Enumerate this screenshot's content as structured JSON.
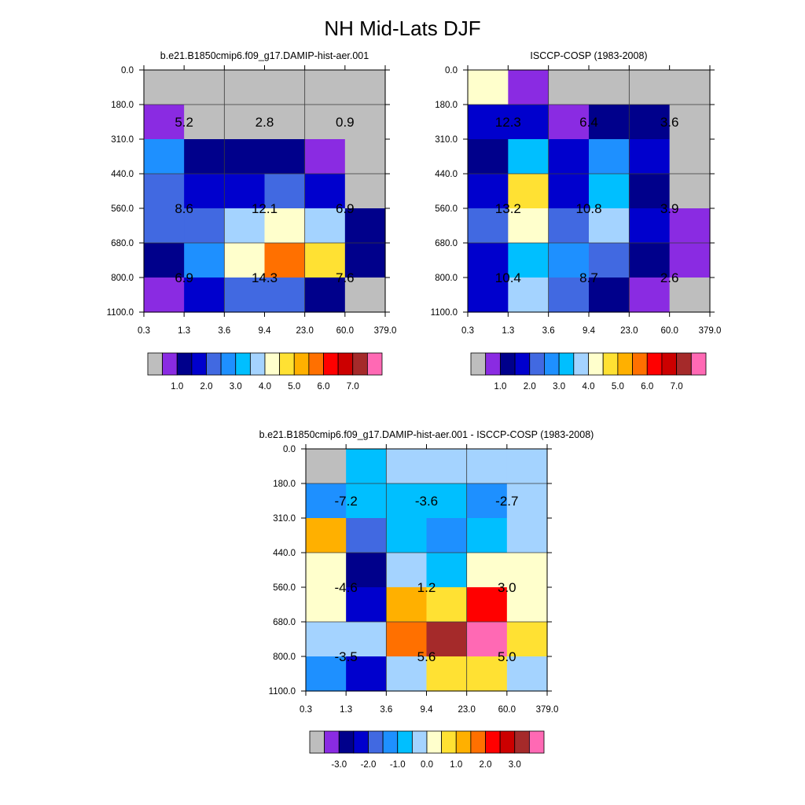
{
  "figure_title": "NH Mid-Lats DJF",
  "chart_data": [
    {
      "type": "heatmap",
      "title": "b.e21.B1850cmip6.f09_g17.DAMIP-hist-aer.001",
      "x_ticks": [
        "0.3",
        "1.3",
        "3.6",
        "9.4",
        "23.0",
        "60.0",
        "379.0"
      ],
      "y_ticks": [
        "0.0",
        "180.0",
        "310.0",
        "440.0",
        "560.0",
        "680.0",
        "800.0",
        "1100.0"
      ],
      "cell_colors": [
        [
          "#bebebe",
          "#bebebe",
          "#bebebe",
          "#bebebe",
          "#bebebe",
          "#bebebe"
        ],
        [
          "#8a2be2",
          "#bebebe",
          "#bebebe",
          "#bebebe",
          "#bebebe",
          "#bebebe"
        ],
        [
          "#1e90ff",
          "#00008b",
          "#00008b",
          "#00008b",
          "#8a2be2",
          "#bebebe"
        ],
        [
          "#4169e1",
          "#0000cd",
          "#0000cd",
          "#4169e1",
          "#0000cd",
          "#bebebe"
        ],
        [
          "#4169e1",
          "#4169e1",
          "#a4d3ff",
          "#ffffcc",
          "#a4d3ff",
          "#00008b"
        ],
        [
          "#00008b",
          "#1e90ff",
          "#ffffcc",
          "#ff7000",
          "#ffe133",
          "#00008b"
        ],
        [
          "#8a2be2",
          "#0000cd",
          "#4169e1",
          "#4169e1",
          "#00008b",
          "#bebebe"
        ]
      ],
      "annotations": [
        {
          "x_index": 1,
          "y_index": 1.5,
          "text": "5.2"
        },
        {
          "x_index": 3,
          "y_index": 1.5,
          "text": "2.8"
        },
        {
          "x_index": 5,
          "y_index": 1.5,
          "text": "0.9"
        },
        {
          "x_index": 1,
          "y_index": 4,
          "text": "8.6"
        },
        {
          "x_index": 3,
          "y_index": 4,
          "text": "12.1"
        },
        {
          "x_index": 5,
          "y_index": 4,
          "text": "6.9"
        },
        {
          "x_index": 1,
          "y_index": 6,
          "text": "6.9"
        },
        {
          "x_index": 3,
          "y_index": 6,
          "text": "14.3"
        },
        {
          "x_index": 5,
          "y_index": 6,
          "text": "7.6"
        }
      ],
      "colorbar": {
        "colors": [
          "#bebebe",
          "#8a2be2",
          "#00008b",
          "#0000cd",
          "#4169e1",
          "#1e90ff",
          "#00bfff",
          "#a4d3ff",
          "#ffffcc",
          "#ffe133",
          "#ffb000",
          "#ff7000",
          "#ff0000",
          "#cc0000",
          "#a52a2a",
          "#ff69b4"
        ],
        "labels": [
          "1.0",
          "2.0",
          "3.0",
          "4.0",
          "5.0",
          "6.0",
          "7.0"
        ]
      }
    },
    {
      "type": "heatmap",
      "title": "ISCCP-COSP (1983-2008)",
      "x_ticks": [
        "0.3",
        "1.3",
        "3.6",
        "9.4",
        "23.0",
        "60.0",
        "379.0"
      ],
      "y_ticks": [
        "0.0",
        "180.0",
        "310.0",
        "440.0",
        "560.0",
        "680.0",
        "800.0",
        "1100.0"
      ],
      "cell_colors": [
        [
          "#ffffcc",
          "#8a2be2",
          "#bebebe",
          "#bebebe",
          "#bebebe",
          "#bebebe"
        ],
        [
          "#0000cd",
          "#0000cd",
          "#8a2be2",
          "#00008b",
          "#00008b",
          "#bebebe"
        ],
        [
          "#00008b",
          "#00bfff",
          "#0000cd",
          "#1e90ff",
          "#0000cd",
          "#bebebe"
        ],
        [
          "#0000cd",
          "#ffe133",
          "#0000cd",
          "#00bfff",
          "#00008b",
          "#bebebe"
        ],
        [
          "#4169e1",
          "#ffffcc",
          "#4169e1",
          "#a4d3ff",
          "#0000cd",
          "#8a2be2"
        ],
        [
          "#0000cd",
          "#00bfff",
          "#1e90ff",
          "#4169e1",
          "#00008b",
          "#8a2be2"
        ],
        [
          "#0000cd",
          "#a4d3ff",
          "#4169e1",
          "#00008b",
          "#8a2be2",
          "#bebebe"
        ]
      ],
      "annotations": [
        {
          "x_index": 1,
          "y_index": 1.5,
          "text": "12.3"
        },
        {
          "x_index": 3,
          "y_index": 1.5,
          "text": "6.4"
        },
        {
          "x_index": 5,
          "y_index": 1.5,
          "text": "3.6"
        },
        {
          "x_index": 1,
          "y_index": 4,
          "text": "13.2"
        },
        {
          "x_index": 3,
          "y_index": 4,
          "text": "10.8"
        },
        {
          "x_index": 5,
          "y_index": 4,
          "text": "3.9"
        },
        {
          "x_index": 1,
          "y_index": 6,
          "text": "10.4"
        },
        {
          "x_index": 3,
          "y_index": 6,
          "text": "8.7"
        },
        {
          "x_index": 5,
          "y_index": 6,
          "text": "2.6"
        }
      ],
      "colorbar": {
        "colors": [
          "#bebebe",
          "#8a2be2",
          "#00008b",
          "#0000cd",
          "#4169e1",
          "#1e90ff",
          "#00bfff",
          "#a4d3ff",
          "#ffffcc",
          "#ffe133",
          "#ffb000",
          "#ff7000",
          "#ff0000",
          "#cc0000",
          "#a52a2a",
          "#ff69b4"
        ],
        "labels": [
          "1.0",
          "2.0",
          "3.0",
          "4.0",
          "5.0",
          "6.0",
          "7.0"
        ]
      }
    },
    {
      "type": "heatmap",
      "title": "b.e21.B1850cmip6.f09_g17.DAMIP-hist-aer.001 - ISCCP-COSP (1983-2008)",
      "x_ticks": [
        "0.3",
        "1.3",
        "3.6",
        "9.4",
        "23.0",
        "60.0",
        "379.0"
      ],
      "y_ticks": [
        "0.0",
        "180.0",
        "310.0",
        "440.0",
        "560.0",
        "680.0",
        "800.0",
        "1100.0"
      ],
      "cell_colors": [
        [
          "#bebebe",
          "#00bfff",
          "#a4d3ff",
          "#a4d3ff",
          "#a4d3ff",
          "#a4d3ff"
        ],
        [
          "#1e90ff",
          "#00bfff",
          "#00bfff",
          "#00bfff",
          "#1e90ff",
          "#a4d3ff"
        ],
        [
          "#ffb000",
          "#4169e1",
          "#00bfff",
          "#1e90ff",
          "#00bfff",
          "#a4d3ff"
        ],
        [
          "#ffffcc",
          "#00008b",
          "#a4d3ff",
          "#00bfff",
          "#ffffcc",
          "#ffffcc"
        ],
        [
          "#ffffcc",
          "#0000cd",
          "#ffb000",
          "#ffe133",
          "#ff0000",
          "#ffffcc"
        ],
        [
          "#a4d3ff",
          "#a4d3ff",
          "#ff7000",
          "#a52a2a",
          "#ff69b4",
          "#ffe133"
        ],
        [
          "#1e90ff",
          "#0000cd",
          "#a4d3ff",
          "#ffe133",
          "#ffe133",
          "#a4d3ff"
        ]
      ],
      "annotations": [
        {
          "x_index": 1,
          "y_index": 1.5,
          "text": "-7.2"
        },
        {
          "x_index": 3,
          "y_index": 1.5,
          "text": "-3.6"
        },
        {
          "x_index": 5,
          "y_index": 1.5,
          "text": "-2.7"
        },
        {
          "x_index": 1,
          "y_index": 4,
          "text": "-4.6"
        },
        {
          "x_index": 3,
          "y_index": 4,
          "text": "1.2"
        },
        {
          "x_index": 5,
          "y_index": 4,
          "text": "3.0"
        },
        {
          "x_index": 1,
          "y_index": 6,
          "text": "-3.5"
        },
        {
          "x_index": 3,
          "y_index": 6,
          "text": "5.6"
        },
        {
          "x_index": 5,
          "y_index": 6,
          "text": "5.0"
        }
      ],
      "colorbar": {
        "colors": [
          "#bebebe",
          "#8a2be2",
          "#00008b",
          "#0000cd",
          "#4169e1",
          "#1e90ff",
          "#00bfff",
          "#a4d3ff",
          "#ffffcc",
          "#ffe133",
          "#ffb000",
          "#ff7000",
          "#ff0000",
          "#cc0000",
          "#a52a2a",
          "#ff69b4"
        ],
        "labels": [
          "-3.0",
          "-2.0",
          "-1.0",
          "0.0",
          "1.0",
          "2.0",
          "3.0"
        ]
      }
    }
  ]
}
